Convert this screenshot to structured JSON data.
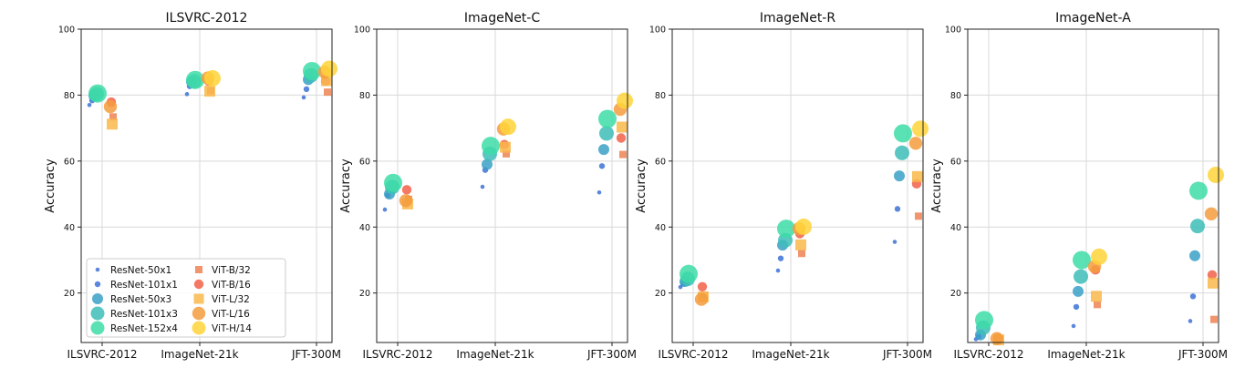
{
  "colors": {
    "ResNet-50x1": "#3d72d6",
    "ResNet-101x1": "#3d72d6",
    "ResNet-50x3": "#3aa0c7",
    "ResNet-101x3": "#3dbdb8",
    "ResNet-152x4": "#3ddca7",
    "ViT-B/32": "#ef8354",
    "ViT-B/16": "#f2614a",
    "ViT-L/32": "#f9b94b",
    "ViT-L/16": "#f49c3d",
    "ViT-H/14": "#ffd43a"
  },
  "chart_data": [
    {
      "type": "scatter",
      "title": "ILSVRC-2012",
      "xlabel": "",
      "ylabel": "Accuracy",
      "categories": [
        "ILSVRC-2012",
        "ImageNet-21k",
        "JFT-300M"
      ],
      "ylim": [
        5,
        100
      ],
      "yticks": [
        20,
        40,
        60,
        80,
        100
      ],
      "grid": true,
      "legend": "lower-left",
      "series": [
        {
          "name": "ResNet-50x1",
          "marker": "circle",
          "size": 1,
          "values": [
            77.0,
            80.3,
            79.3
          ]
        },
        {
          "name": "ResNet-101x1",
          "marker": "circle",
          "size": 2,
          "values": [
            78.4,
            82.7,
            81.8
          ]
        },
        {
          "name": "ResNet-50x3",
          "marker": "circle",
          "size": 3,
          "values": [
            79.8,
            84.0,
            84.7
          ]
        },
        {
          "name": "ResNet-101x3",
          "marker": "circle",
          "size": 4,
          "values": [
            80.3,
            84.2,
            86.0
          ]
        },
        {
          "name": "ResNet-152x4",
          "marker": "circle",
          "size": 5,
          "values": [
            80.5,
            84.6,
            87.3
          ]
        },
        {
          "name": "ViT-B/32",
          "marker": "square",
          "size": 1,
          "values": [
            73.4,
            81.3,
            80.9
          ]
        },
        {
          "name": "ViT-B/16",
          "marker": "circle",
          "size": 2,
          "values": [
            77.9,
            84.2,
            84.2
          ]
        },
        {
          "name": "ViT-L/32",
          "marker": "square",
          "size": 3,
          "values": [
            71.2,
            81.2,
            84.4
          ]
        },
        {
          "name": "ViT-L/16",
          "marker": "circle",
          "size": 4,
          "values": [
            76.5,
            85.2,
            87.0
          ]
        },
        {
          "name": "ViT-H/14",
          "marker": "circle",
          "size": 5,
          "values": [
            null,
            85.1,
            88.0
          ]
        }
      ]
    },
    {
      "type": "scatter",
      "title": "ImageNet-C",
      "xlabel": "",
      "ylabel": "Accuracy",
      "categories": [
        "ILSVRC-2012",
        "ImageNet-21k",
        "JFT-300M"
      ],
      "ylim": [
        5,
        100
      ],
      "yticks": [
        20,
        40,
        60,
        80,
        100
      ],
      "grid": true,
      "series": [
        {
          "name": "ResNet-50x1",
          "marker": "circle",
          "size": 1,
          "values": [
            45.3,
            52.2,
            50.5
          ]
        },
        {
          "name": "ResNet-101x1",
          "marker": "circle",
          "size": 2,
          "values": [
            49.6,
            57.3,
            58.5
          ]
        },
        {
          "name": "ResNet-50x3",
          "marker": "circle",
          "size": 3,
          "values": [
            50.0,
            59.0,
            63.5
          ]
        },
        {
          "name": "ResNet-101x3",
          "marker": "circle",
          "size": 4,
          "values": [
            52.1,
            62.2,
            68.4
          ]
        },
        {
          "name": "ResNet-152x4",
          "marker": "circle",
          "size": 5,
          "values": [
            53.4,
            64.6,
            72.8
          ]
        },
        {
          "name": "ViT-B/32",
          "marker": "square",
          "size": 1,
          "values": [
            48.4,
            62.2,
            62.0
          ]
        },
        {
          "name": "ViT-B/16",
          "marker": "circle",
          "size": 2,
          "values": [
            51.3,
            65.0,
            67.0
          ]
        },
        {
          "name": "ViT-L/32",
          "marker": "square",
          "size": 3,
          "values": [
            47.0,
            64.2,
            70.3
          ]
        },
        {
          "name": "ViT-L/16",
          "marker": "circle",
          "size": 4,
          "values": [
            48.0,
            69.7,
            75.7
          ]
        },
        {
          "name": "ViT-H/14",
          "marker": "circle",
          "size": 5,
          "values": [
            null,
            70.4,
            78.3
          ]
        }
      ]
    },
    {
      "type": "scatter",
      "title": "ImageNet-R",
      "xlabel": "",
      "ylabel": "Accuracy",
      "categories": [
        "ILSVRC-2012",
        "ImageNet-21k",
        "JFT-300M"
      ],
      "ylim": [
        5,
        100
      ],
      "yticks": [
        20,
        40,
        60,
        80,
        100
      ],
      "grid": true,
      "series": [
        {
          "name": "ResNet-50x1",
          "marker": "circle",
          "size": 1,
          "values": [
            21.8,
            26.8,
            35.5
          ]
        },
        {
          "name": "ResNet-101x1",
          "marker": "circle",
          "size": 2,
          "values": [
            22.8,
            30.5,
            45.5
          ]
        },
        {
          "name": "ResNet-50x3",
          "marker": "circle",
          "size": 3,
          "values": [
            23.5,
            34.5,
            55.5
          ]
        },
        {
          "name": "ResNet-101x3",
          "marker": "circle",
          "size": 4,
          "values": [
            24.3,
            36.0,
            62.5
          ]
        },
        {
          "name": "ResNet-152x4",
          "marker": "circle",
          "size": 5,
          "values": [
            25.8,
            39.5,
            68.4
          ]
        },
        {
          "name": "ViT-B/32",
          "marker": "square",
          "size": 1,
          "values": [
            19.3,
            32.0,
            43.3
          ]
        },
        {
          "name": "ViT-B/16",
          "marker": "circle",
          "size": 2,
          "values": [
            21.9,
            38.0,
            53.1
          ]
        },
        {
          "name": "ViT-L/32",
          "marker": "square",
          "size": 3,
          "values": [
            18.8,
            34.6,
            55.3
          ]
        },
        {
          "name": "ViT-L/16",
          "marker": "circle",
          "size": 4,
          "values": [
            18.1,
            39.5,
            65.4
          ]
        },
        {
          "name": "ViT-H/14",
          "marker": "circle",
          "size": 5,
          "values": [
            null,
            40.1,
            69.8
          ]
        }
      ]
    },
    {
      "type": "scatter",
      "title": "ImageNet-A",
      "xlabel": "",
      "ylabel": "Accuracy",
      "categories": [
        "ILSVRC-2012",
        "ImageNet-21k",
        "JFT-300M"
      ],
      "ylim": [
        5,
        100
      ],
      "yticks": [
        20,
        40,
        60,
        80,
        100
      ],
      "grid": true,
      "series": [
        {
          "name": "ResNet-50x1",
          "marker": "circle",
          "size": 1,
          "values": [
            6.0,
            10.0,
            11.5
          ]
        },
        {
          "name": "ResNet-101x1",
          "marker": "circle",
          "size": 2,
          "values": [
            6.8,
            15.8,
            19.0
          ]
        },
        {
          "name": "ResNet-50x3",
          "marker": "circle",
          "size": 3,
          "values": [
            7.3,
            20.5,
            31.3
          ]
        },
        {
          "name": "ResNet-101x3",
          "marker": "circle",
          "size": 4,
          "values": [
            9.5,
            25.0,
            40.3
          ]
        },
        {
          "name": "ResNet-152x4",
          "marker": "circle",
          "size": 5,
          "values": [
            11.8,
            30.0,
            51.0
          ]
        },
        {
          "name": "ViT-B/32",
          "marker": "square",
          "size": 1,
          "values": [
            6.0,
            16.5,
            12.0
          ]
        },
        {
          "name": "ViT-B/16",
          "marker": "circle",
          "size": 2,
          "values": [
            6.3,
            27.0,
            25.5
          ]
        },
        {
          "name": "ViT-L/32",
          "marker": "square",
          "size": 3,
          "values": [
            5.8,
            19.0,
            23.0
          ]
        },
        {
          "name": "ViT-L/16",
          "marker": "circle",
          "size": 4,
          "values": [
            6.2,
            28.0,
            44.0
          ]
        },
        {
          "name": "ViT-H/14",
          "marker": "circle",
          "size": 5,
          "values": [
            null,
            31.0,
            55.8
          ]
        }
      ]
    }
  ]
}
